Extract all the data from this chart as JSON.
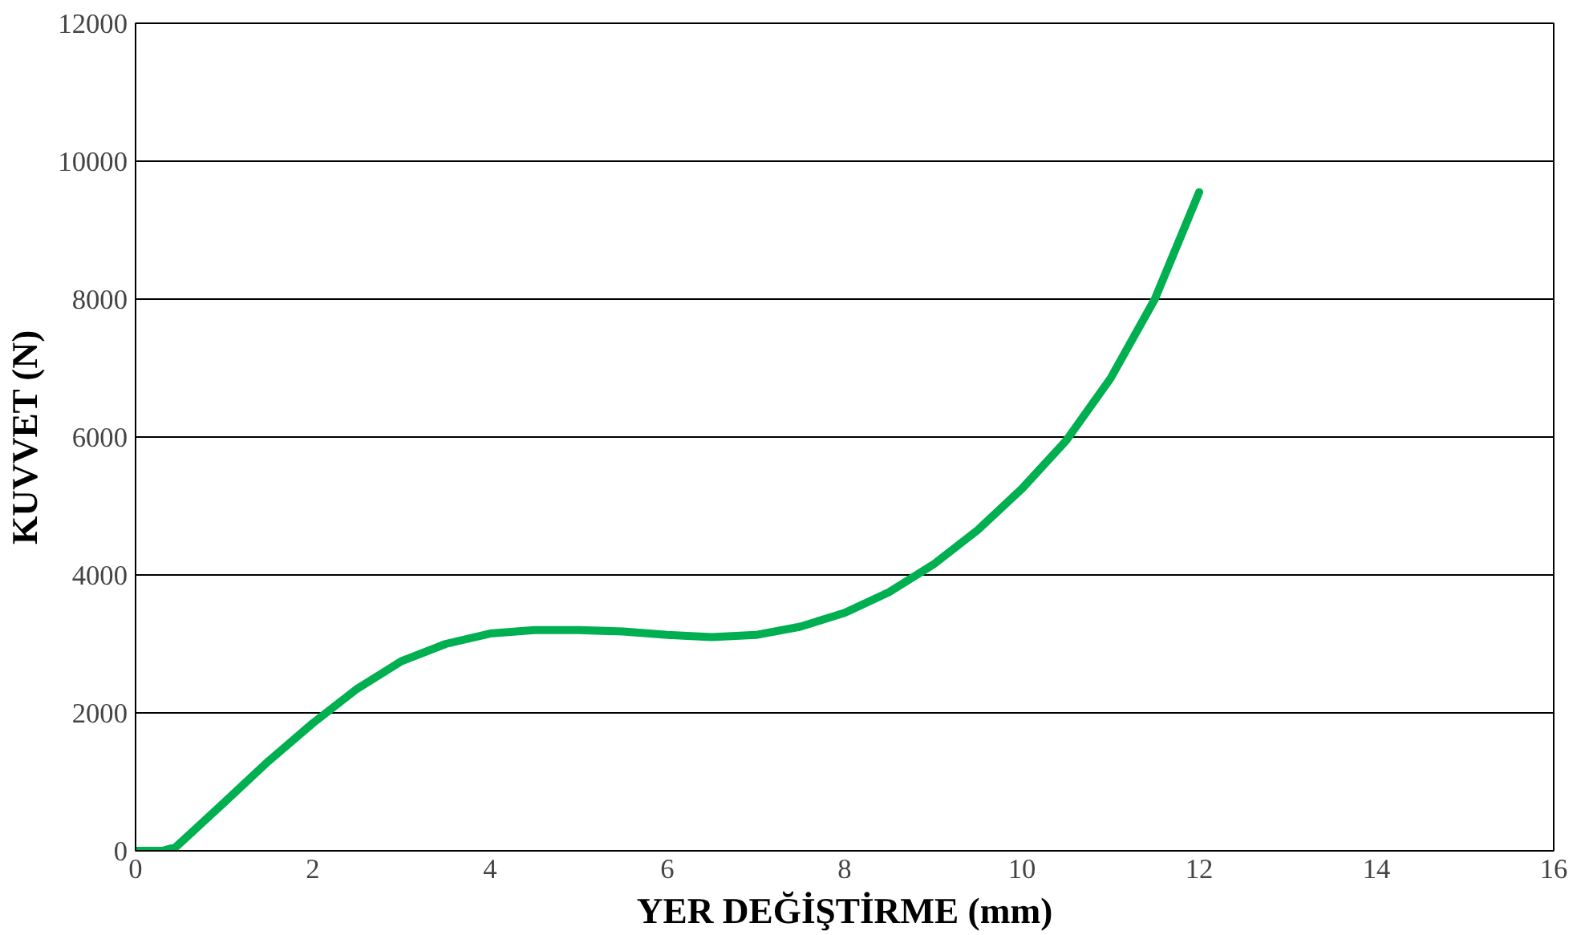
{
  "chart_data": {
    "type": "line",
    "xlabel": "YER DEĞİŞTİRME (mm)",
    "ylabel": "KUVVET (N)",
    "x": [
      0,
      0.3,
      0.45,
      1,
      1.5,
      2,
      2.5,
      3,
      3.5,
      4,
      4.5,
      5,
      5.5,
      6,
      6.5,
      7,
      7.5,
      8,
      8.5,
      9,
      9.5,
      10,
      10.5,
      11,
      11.5,
      12
    ],
    "series": [
      {
        "color": "#00b050",
        "values": [
          0,
          0,
          50,
          700,
          1300,
          1850,
          2350,
          2750,
          3000,
          3150,
          3200,
          3200,
          3180,
          3130,
          3100,
          3130,
          3250,
          3450,
          3750,
          4150,
          4650,
          5250,
          5950,
          6850,
          8000,
          9550
        ]
      }
    ],
    "xlim": [
      0,
      16
    ],
    "xticks": [
      0,
      2,
      4,
      6,
      8,
      10,
      12,
      14,
      16
    ],
    "ylim": [
      0,
      12000
    ],
    "yticks": [
      0,
      2000,
      4000,
      6000,
      8000,
      10000,
      12000
    ],
    "grid": "y",
    "marker": "none",
    "line_style": "solid"
  }
}
